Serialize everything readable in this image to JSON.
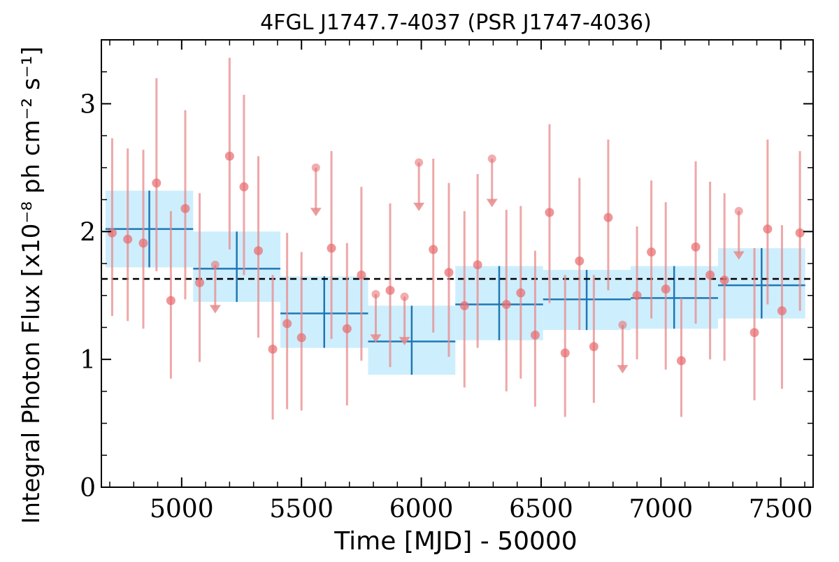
{
  "chart_data": {
    "type": "scatter",
    "title": "4FGL J1747.7-4037 (PSR J1747-4036)",
    "xlabel": "Time [MJD] - 50000",
    "ylabel": "Integral Photon Flux [x10⁻⁸ ph cm⁻² s⁻¹]",
    "xlim": [
      4665,
      7635
    ],
    "ylim": [
      0,
      3.5
    ],
    "x_ticks": [
      5000,
      5500,
      6000,
      6500,
      7000,
      7500
    ],
    "x_tick_labels": [
      "5000",
      "5500",
      "6000",
      "6500",
      "7000",
      "7500"
    ],
    "y_ticks": [
      0,
      1,
      2,
      3
    ],
    "y_tick_labels": [
      "0",
      "1",
      "2",
      "3"
    ],
    "grid": false,
    "mean_flux": 1.63,
    "colors": {
      "points": "#e8696c",
      "errorbars": "#e8898b",
      "bins": "#1f77b4",
      "bin_fill": "#cdeefd",
      "mean_line": "#000000"
    },
    "series": [
      {
        "kind": "short-bin",
        "points": [
          {
            "x": 4710,
            "y": 1.99,
            "lo": 1.34,
            "hi": 2.73
          },
          {
            "x": 4775,
            "y": 1.94,
            "lo": 1.3,
            "hi": 2.65
          },
          {
            "x": 4840,
            "y": 1.91,
            "lo": 1.24,
            "hi": 2.64
          },
          {
            "x": 4895,
            "y": 2.38,
            "lo": 1.69,
            "hi": 3.2
          },
          {
            "x": 4955,
            "y": 1.46,
            "lo": 0.85,
            "hi": 2.16
          },
          {
            "x": 5015,
            "y": 2.18,
            "lo": 1.47,
            "hi": 2.95
          },
          {
            "x": 5075,
            "y": 1.6,
            "lo": 0.98,
            "hi": 2.3
          },
          {
            "x": 5200,
            "y": 2.59,
            "lo": 1.86,
            "hi": 3.36
          },
          {
            "x": 5260,
            "y": 2.35,
            "lo": 1.66,
            "hi": 3.07
          },
          {
            "x": 5320,
            "y": 1.85,
            "lo": 1.17,
            "hi": 2.59
          },
          {
            "x": 5380,
            "y": 1.08,
            "lo": 0.53,
            "hi": 1.66
          },
          {
            "x": 5440,
            "y": 1.28,
            "lo": 0.61,
            "hi": 1.99
          },
          {
            "x": 5500,
            "y": 1.17,
            "lo": 0.6,
            "hi": 1.84
          },
          {
            "x": 5625,
            "y": 1.87,
            "lo": 1.16,
            "hi": 2.63
          },
          {
            "x": 5690,
            "y": 1.24,
            "lo": 0.64,
            "hi": 1.91
          },
          {
            "x": 5750,
            "y": 1.66,
            "lo": 0.99,
            "hi": 2.35
          },
          {
            "x": 5870,
            "y": 1.54,
            "lo": 0.94,
            "hi": 2.22
          },
          {
            "x": 6050,
            "y": 1.86,
            "lo": 1.21,
            "hi": 2.57
          },
          {
            "x": 6115,
            "y": 1.68,
            "lo": 1.02,
            "hi": 2.38
          },
          {
            "x": 6180,
            "y": 1.42,
            "lo": 0.78,
            "hi": 2.16
          },
          {
            "x": 6235,
            "y": 1.74,
            "lo": 1.09,
            "hi": 2.45
          },
          {
            "x": 6355,
            "y": 1.43,
            "lo": 0.75,
            "hi": 2.17
          },
          {
            "x": 6415,
            "y": 1.52,
            "lo": 0.85,
            "hi": 2.2
          },
          {
            "x": 6475,
            "y": 1.19,
            "lo": 0.63,
            "hi": 1.85
          },
          {
            "x": 6535,
            "y": 2.15,
            "lo": 1.44,
            "hi": 2.84
          },
          {
            "x": 6600,
            "y": 1.05,
            "lo": 0.55,
            "hi": 1.66
          },
          {
            "x": 6660,
            "y": 1.77,
            "lo": 1.23,
            "hi": 2.42
          },
          {
            "x": 6720,
            "y": 1.1,
            "lo": 0.66,
            "hi": 1.66
          },
          {
            "x": 6780,
            "y": 2.11,
            "lo": 1.54,
            "hi": 2.72
          },
          {
            "x": 6900,
            "y": 1.5,
            "lo": 1.0,
            "hi": 2.04
          },
          {
            "x": 6960,
            "y": 1.84,
            "lo": 1.32,
            "hi": 2.4
          },
          {
            "x": 7020,
            "y": 1.55,
            "lo": 0.92,
            "hi": 2.23
          },
          {
            "x": 7085,
            "y": 0.99,
            "lo": 0.55,
            "hi": 1.48
          },
          {
            "x": 7145,
            "y": 1.88,
            "lo": 1.28,
            "hi": 2.55
          },
          {
            "x": 7205,
            "y": 1.66,
            "lo": 1.0,
            "hi": 2.39
          },
          {
            "x": 7265,
            "y": 1.62,
            "lo": 0.99,
            "hi": 2.3
          },
          {
            "x": 7390,
            "y": 1.21,
            "lo": 0.68,
            "hi": 1.87
          },
          {
            "x": 7445,
            "y": 2.02,
            "lo": 1.43,
            "hi": 2.72
          },
          {
            "x": 7505,
            "y": 1.38,
            "lo": 0.77,
            "hi": 2.05
          },
          {
            "x": 7580,
            "y": 1.99,
            "lo": 1.38,
            "hi": 2.63
          }
        ],
        "upper_limits": [
          {
            "x": 5140,
            "y": 1.74
          },
          {
            "x": 5560,
            "y": 2.5
          },
          {
            "x": 5810,
            "y": 1.51
          },
          {
            "x": 5930,
            "y": 1.49
          },
          {
            "x": 5990,
            "y": 2.54
          },
          {
            "x": 6295,
            "y": 2.57
          },
          {
            "x": 6840,
            "y": 1.27
          },
          {
            "x": 7325,
            "y": 2.16
          }
        ]
      },
      {
        "kind": "long-bin",
        "bins": [
          {
            "x": 4865,
            "x_lo": 4682,
            "x_hi": 5048,
            "y": 2.02,
            "lo": 1.72,
            "hi": 2.32
          },
          {
            "x": 5230,
            "x_lo": 5048,
            "x_hi": 5412,
            "y": 1.71,
            "lo": 1.45,
            "hi": 2.0
          },
          {
            "x": 5595,
            "x_lo": 5412,
            "x_hi": 5778,
            "y": 1.36,
            "lo": 1.09,
            "hi": 1.65
          },
          {
            "x": 5960,
            "x_lo": 5778,
            "x_hi": 6142,
            "y": 1.14,
            "lo": 0.88,
            "hi": 1.42
          },
          {
            "x": 6325,
            "x_lo": 6142,
            "x_hi": 6508,
            "y": 1.43,
            "lo": 1.15,
            "hi": 1.73
          },
          {
            "x": 6690,
            "x_lo": 6508,
            "x_hi": 6874,
            "y": 1.47,
            "lo": 1.23,
            "hi": 1.7
          },
          {
            "x": 7055,
            "x_lo": 6874,
            "x_hi": 7238,
            "y": 1.48,
            "lo": 1.24,
            "hi": 1.73
          },
          {
            "x": 7420,
            "x_lo": 7238,
            "x_hi": 7602,
            "y": 1.58,
            "lo": 1.32,
            "hi": 1.87
          }
        ]
      }
    ]
  }
}
